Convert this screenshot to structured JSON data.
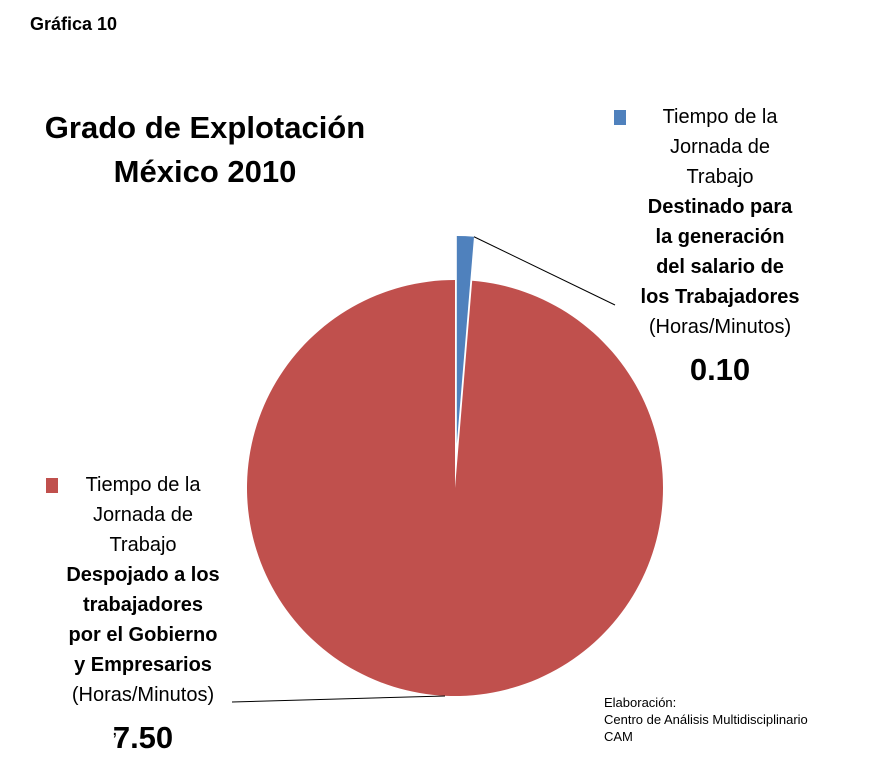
{
  "figure_label": "Gráfica 10",
  "chart_data": {
    "type": "pie",
    "title": "Grado de Explotación México 2010",
    "title_lines": [
      "Grado de Explotación",
      "México 2010"
    ],
    "slices": [
      {
        "label_lines": [
          "Tiempo de la",
          "Jornada de",
          "Trabajo"
        ],
        "bold_lines": [
          "Destinado para",
          "la generación",
          "del salario de",
          "los Trabajadores"
        ],
        "unit": "(Horas/Minutos)",
        "value": 0.1,
        "display_value": "0.10",
        "color": "#4F81BD"
      },
      {
        "label_lines": [
          "Tiempo de la",
          "Jornada de",
          "Trabajo"
        ],
        "bold_lines": [
          "Despojado a los",
          "trabajadores",
          "por el Gobierno",
          "y Empresarios"
        ],
        "unit": "(Horas/Minutos)",
        "value": 7.5,
        "display_value": "7.50",
        "color": "#C0504D"
      }
    ],
    "legend": "two blocks: top-right and bottom-left, with leader lines"
  },
  "stray_mark": ",",
  "credits": {
    "line1": "Elaboración:",
    "line2": "Centro de Análisis Multidisciplinario",
    "line3": "CAM"
  }
}
